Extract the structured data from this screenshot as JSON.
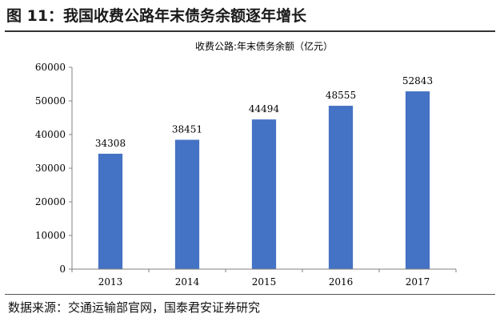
{
  "figure": {
    "title": "图 11：我国收费公路年末债务余额逐年增长",
    "source": "数据来源：交通运输部官网，国泰君安证券研究"
  },
  "chart_data": {
    "type": "bar",
    "title": "收费公路:年末债务余额（亿元）",
    "categories": [
      "2013",
      "2014",
      "2015",
      "2016",
      "2017"
    ],
    "values": [
      34308,
      38451,
      44494,
      48555,
      52843
    ],
    "data_labels": [
      "34308",
      "38451",
      "44494",
      "48555",
      "52843"
    ],
    "ylim": [
      0,
      60000
    ],
    "yticks": [
      0,
      10000,
      20000,
      30000,
      40000,
      50000,
      60000
    ],
    "ytick_labels": [
      "0",
      "10000",
      "20000",
      "30000",
      "40000",
      "50000",
      "60000"
    ],
    "xlabel": "",
    "ylabel": "",
    "grid": false,
    "legend": "none",
    "bar_color": "#4472C4"
  }
}
